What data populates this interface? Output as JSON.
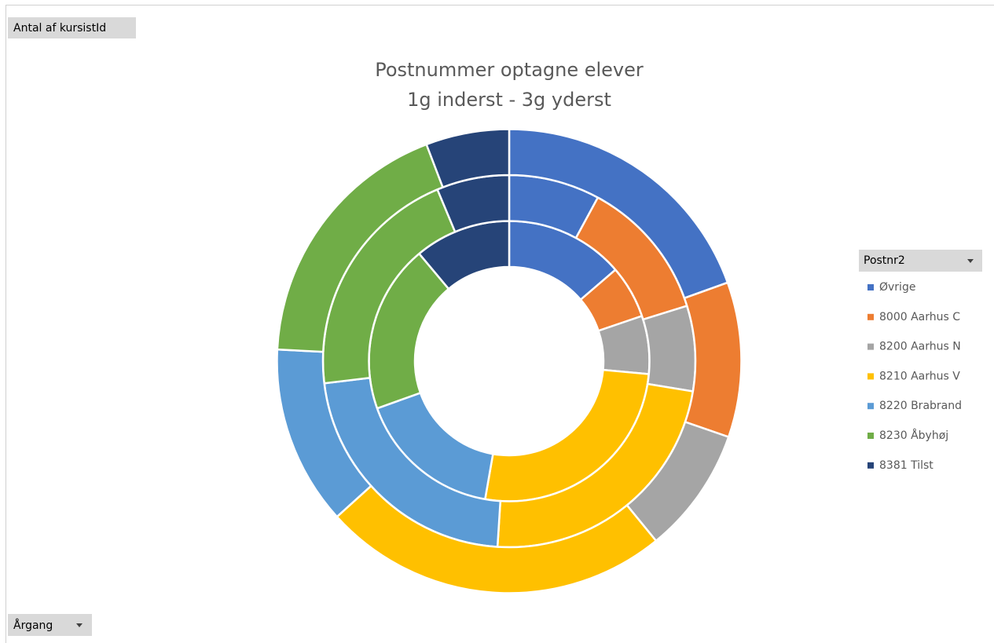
{
  "chart_data": {
    "type": "doughnut",
    "title": [
      "Postnummer optagne elever",
      "1g inderst - 3g yderst"
    ],
    "value_field": "Antal af kursistId",
    "filter_field": "Årgang",
    "legend_title": "Postnr2",
    "legend": "right",
    "categories": [
      "Øvrige",
      "8000 Aarhus C",
      "8200 Aarhus N",
      "8210 Aarhus V",
      "8220 Brabrand",
      "8230 Åbyhøj",
      "8381 Tilst"
    ],
    "colors": [
      "#4472c4",
      "#ed7d31",
      "#a5a5a5",
      "#ffc000",
      "#5b9bd5",
      "#70ad47",
      "#264478"
    ],
    "series": [
      {
        "values": [
          13.7,
          6.1,
          6.7,
          26.3,
          16.8,
          19.4,
          11.1
        ]
      },
      {
        "values": [
          7.9,
          12.3,
          7.4,
          23.4,
          22.1,
          20.6,
          6.3
        ]
      },
      {
        "values": [
          19.5,
          10.8,
          8.8,
          24.2,
          12.5,
          18.4,
          5.8
        ]
      }
    ]
  }
}
